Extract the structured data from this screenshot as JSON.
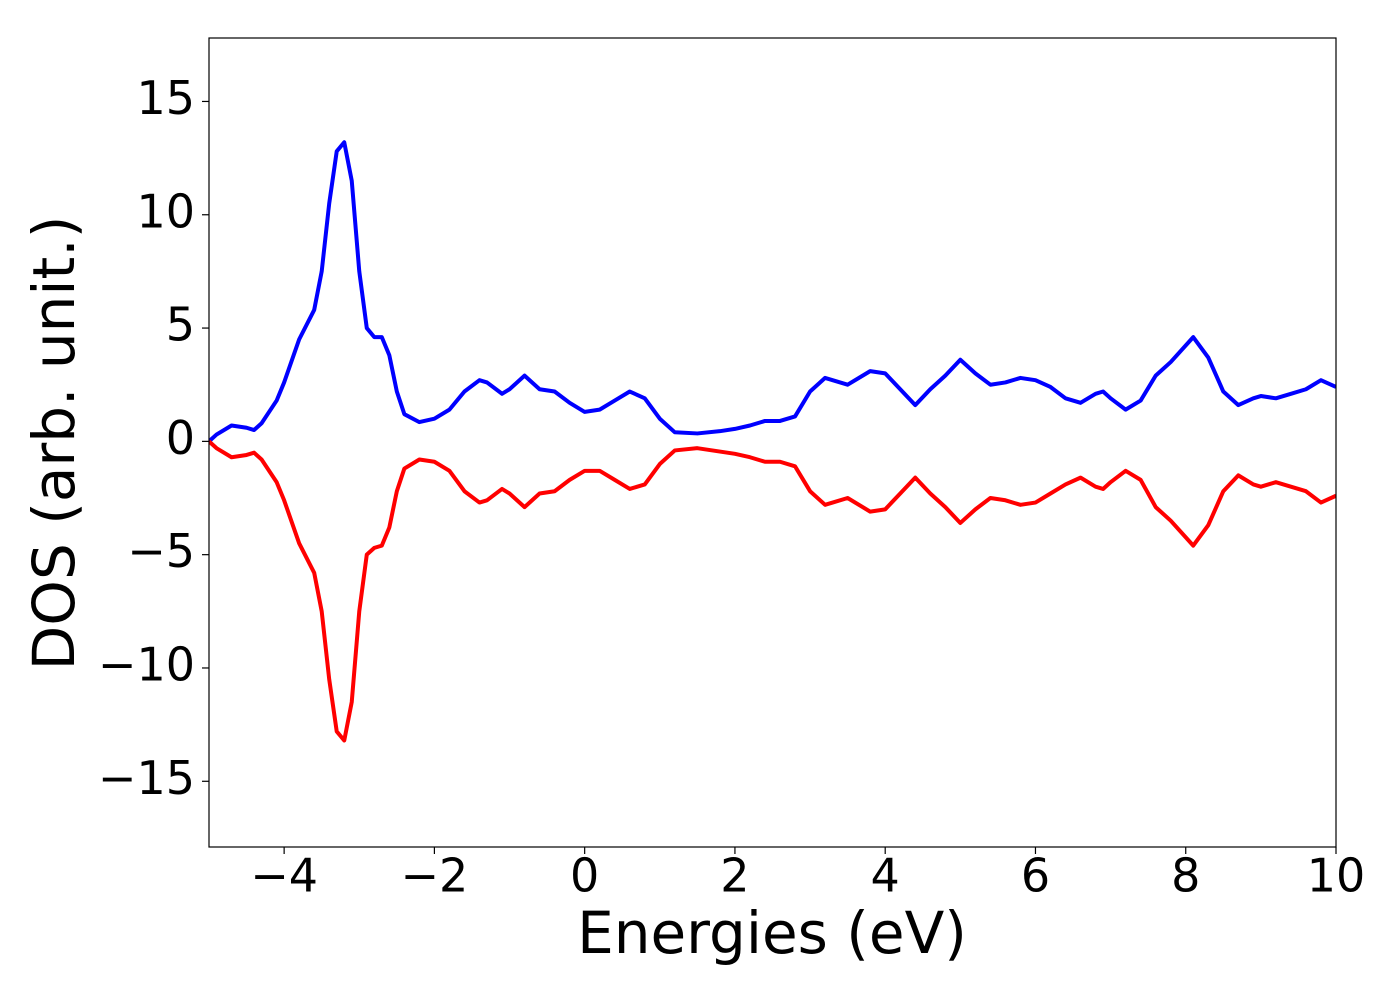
{
  "chart_data": {
    "type": "line",
    "xlabel": "Energies (eV)",
    "ylabel": "DOS (arb. unit.)",
    "x": [
      -5,
      -4.9,
      -4.7,
      -4.5,
      -4.4,
      -4.3,
      -4.1,
      -4.0,
      -3.8,
      -3.6,
      -3.5,
      -3.4,
      -3.3,
      -3.2,
      -3.1,
      -3.0,
      -2.9,
      -2.8,
      -2.7,
      -2.6,
      -2.5,
      -2.4,
      -2.2,
      -2.0,
      -1.8,
      -1.6,
      -1.4,
      -1.3,
      -1.1,
      -1.0,
      -0.8,
      -0.6,
      -0.4,
      -0.2,
      0,
      0.2,
      0.4,
      0.6,
      0.8,
      1.0,
      1.2,
      1.5,
      1.8,
      2.0,
      2.2,
      2.4,
      2.6,
      2.8,
      3.0,
      3.2,
      3.3,
      3.5,
      3.8,
      4.0,
      4.2,
      4.4,
      4.6,
      4.8,
      5.0,
      5.2,
      5.4,
      5.6,
      5.8,
      6.0,
      6.2,
      6.4,
      6.6,
      6.8,
      6.9,
      7.0,
      7.2,
      7.4,
      7.6,
      7.8,
      8.1,
      8.3,
      8.5,
      8.7,
      8.9,
      9.0,
      9.2,
      9.4,
      9.6,
      9.8,
      10.0
    ],
    "series": [
      {
        "color": "#0000ff",
        "values": [
          0.0,
          0.3,
          0.7,
          0.6,
          0.5,
          0.8,
          1.8,
          2.6,
          4.5,
          5.8,
          7.5,
          10.5,
          12.8,
          13.2,
          11.5,
          7.5,
          5.0,
          4.6,
          4.6,
          3.8,
          2.2,
          1.2,
          0.85,
          1.0,
          1.4,
          2.2,
          2.7,
          2.6,
          2.1,
          2.3,
          2.9,
          2.3,
          2.2,
          1.7,
          1.3,
          1.4,
          1.8,
          2.2,
          1.9,
          1.0,
          0.4,
          0.35,
          0.45,
          0.55,
          0.7,
          0.9,
          0.9,
          1.1,
          2.2,
          2.8,
          2.7,
          2.5,
          3.1,
          3.0,
          2.3,
          1.6,
          2.3,
          2.9,
          3.6,
          3.0,
          2.5,
          2.6,
          2.8,
          2.7,
          2.4,
          1.9,
          1.7,
          2.1,
          2.2,
          1.9,
          1.4,
          1.8,
          2.9,
          3.5,
          4.6,
          3.7,
          2.2,
          1.6,
          1.9,
          2.0,
          1.9,
          2.1,
          2.3,
          2.7,
          2.4
        ]
      },
      {
        "color": "#ff0000",
        "values": [
          0.0,
          -0.3,
          -0.7,
          -0.6,
          -0.5,
          -0.8,
          -1.8,
          -2.6,
          -4.5,
          -5.8,
          -7.5,
          -10.5,
          -12.8,
          -13.2,
          -11.5,
          -7.5,
          -5.0,
          -4.7,
          -4.6,
          -3.8,
          -2.2,
          -1.2,
          -0.8,
          -0.9,
          -1.3,
          -2.2,
          -2.7,
          -2.6,
          -2.1,
          -2.3,
          -2.9,
          -2.3,
          -2.2,
          -1.7,
          -1.3,
          -1.3,
          -1.7,
          -2.1,
          -1.9,
          -1.0,
          -0.4,
          -0.3,
          -0.45,
          -0.55,
          -0.7,
          -0.9,
          -0.9,
          -1.1,
          -2.2,
          -2.8,
          -2.7,
          -2.5,
          -3.1,
          -3.0,
          -2.3,
          -1.6,
          -2.3,
          -2.9,
          -3.6,
          -3.0,
          -2.5,
          -2.6,
          -2.8,
          -2.7,
          -2.3,
          -1.9,
          -1.6,
          -2.0,
          -2.1,
          -1.8,
          -1.3,
          -1.7,
          -2.9,
          -3.5,
          -4.6,
          -3.7,
          -2.2,
          -1.5,
          -1.9,
          -2.0,
          -1.8,
          -2.0,
          -2.2,
          -2.7,
          -2.4
        ]
      }
    ],
    "xlim": [
      -5,
      10
    ],
    "ylim": [
      -17.9,
      17.8
    ],
    "xticks": [
      {
        "value": -4,
        "label": "−4"
      },
      {
        "value": -2,
        "label": "−2"
      },
      0,
      2,
      4,
      6,
      8,
      10
    ],
    "yticks": [
      {
        "value": -15,
        "label": "−15"
      },
      {
        "value": -10,
        "label": "−10"
      },
      {
        "value": -5,
        "label": "−5"
      },
      0,
      5,
      10,
      15
    ],
    "grid": false
  }
}
